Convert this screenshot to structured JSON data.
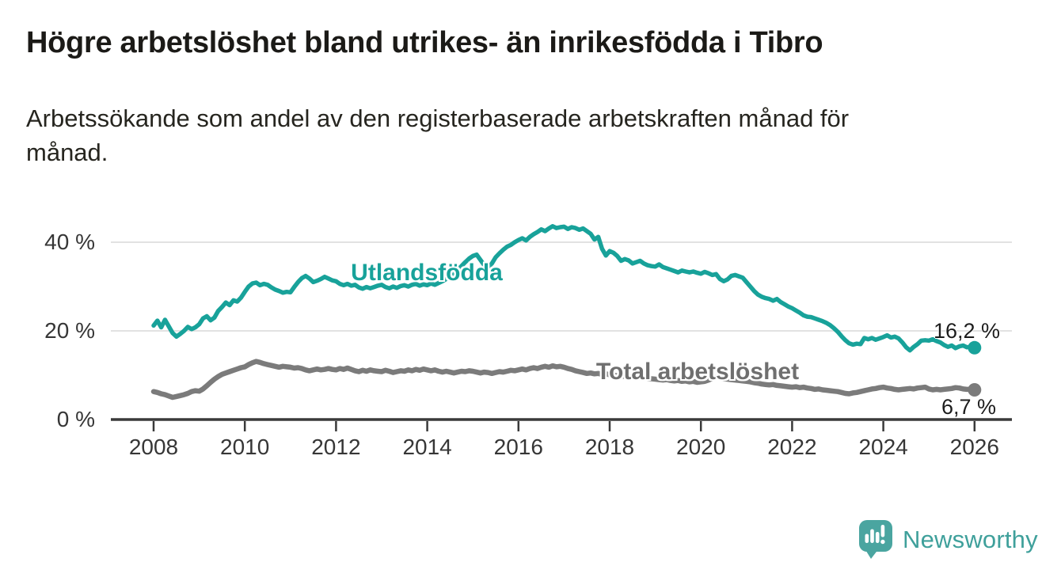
{
  "page": {
    "title": "Högre arbetslöshet bland utrikes- än inrikesfödda i Tibro",
    "subtitle_lines": [
      "Arbetssökande som andel av den registerbaserade arbetskraften månad för",
      "månad."
    ]
  },
  "chart_data": {
    "type": "line",
    "title": "Högre arbetslöshet bland utrikes- än inrikesfödda i Tibro",
    "xlabel": "",
    "ylabel": "Arbetssökande som andel av den registerbaserade arbetskraften",
    "x_unit": "months",
    "x_start_year": 2008,
    "x_step_months": 1,
    "x_ticks": [
      2008,
      2010,
      2012,
      2014,
      2016,
      2018,
      2020,
      2022,
      2024,
      2026
    ],
    "y_ticks": [
      {
        "value": 0,
        "label": "0 %"
      },
      {
        "value": 20,
        "label": "20 %"
      },
      {
        "value": 40,
        "label": "40 %"
      }
    ],
    "ylim": [
      0,
      46
    ],
    "xlim": [
      2007.1,
      2026.8
    ],
    "grid": "horizontal-only",
    "legend": "inline-series-labels",
    "colors": {
      "grid": "#d9d9d9",
      "axis": "#3a3a3a",
      "tick_text": "#363636",
      "annotation_text": "#1c1c1c"
    },
    "series": [
      {
        "name": "Utlandsfödda",
        "color": "#18A29A",
        "end_value": 16.2,
        "end_label": "16,2 %",
        "values": [
          21.2,
          22.3,
          20.8,
          22.5,
          21.0,
          19.5,
          18.7,
          19.3,
          20.0,
          20.9,
          20.4,
          20.8,
          21.5,
          22.8,
          23.3,
          22.4,
          23.0,
          24.5,
          25.4,
          26.4,
          25.8,
          26.9,
          26.6,
          27.5,
          28.8,
          30.0,
          30.7,
          30.9,
          30.3,
          30.6,
          30.4,
          29.8,
          29.3,
          29.0,
          28.6,
          28.8,
          28.7,
          29.9,
          31.0,
          31.9,
          32.4,
          31.8,
          31.0,
          31.3,
          31.7,
          32.2,
          31.8,
          31.4,
          31.2,
          30.6,
          30.3,
          30.6,
          30.2,
          30.4,
          29.8,
          29.5,
          29.9,
          29.6,
          29.9,
          30.2,
          30.4,
          29.9,
          29.6,
          30.0,
          29.7,
          30.1,
          30.3,
          30.0,
          30.4,
          30.6,
          30.2,
          30.5,
          30.3,
          30.7,
          30.4,
          30.8,
          31.2,
          31.7,
          32.3,
          33.0,
          33.8,
          34.6,
          35.5,
          36.3,
          36.9,
          37.2,
          36.0,
          34.8,
          34.3,
          35.2,
          36.6,
          37.5,
          38.3,
          39.0,
          39.4,
          40.0,
          40.5,
          40.9,
          40.4,
          41.2,
          41.8,
          42.3,
          42.9,
          42.5,
          43.1,
          43.6,
          43.2,
          43.4,
          43.5,
          43.0,
          43.4,
          43.2,
          42.8,
          43.1,
          42.5,
          41.9,
          40.6,
          41.2,
          38.5,
          37.0,
          38.0,
          37.6,
          36.9,
          35.8,
          36.2,
          35.9,
          35.2,
          35.5,
          35.8,
          35.2,
          34.8,
          34.6,
          34.5,
          35.0,
          34.4,
          34.1,
          33.8,
          33.5,
          33.2,
          33.6,
          33.4,
          33.2,
          33.4,
          33.1,
          32.9,
          33.3,
          33.0,
          32.6,
          32.8,
          31.7,
          31.2,
          31.6,
          32.4,
          32.6,
          32.3,
          32.0,
          31.0,
          30.0,
          29.0,
          28.2,
          27.7,
          27.4,
          27.2,
          26.8,
          27.2,
          26.5,
          26.0,
          25.5,
          25.1,
          24.6,
          24.1,
          23.5,
          23.2,
          23.1,
          22.8,
          22.5,
          22.2,
          21.8,
          21.3,
          20.6,
          19.8,
          18.8,
          17.9,
          17.2,
          16.9,
          17.1,
          17.0,
          18.4,
          18.1,
          18.4,
          18.0,
          18.3,
          18.6,
          19.0,
          18.5,
          18.7,
          18.3,
          17.4,
          16.3,
          15.6,
          16.4,
          17.0,
          17.8,
          17.9,
          17.8,
          18.1,
          17.7,
          17.4,
          16.8,
          16.4,
          16.7,
          16.1,
          16.5,
          16.7,
          16.3,
          16.4,
          16.2
        ]
      },
      {
        "name": "Total arbetslöshet",
        "color": "#7b7b7b",
        "end_value": 6.7,
        "end_label": "6,7 %",
        "values": [
          6.3,
          6.1,
          5.8,
          5.6,
          5.3,
          5.0,
          5.2,
          5.4,
          5.6,
          5.9,
          6.3,
          6.5,
          6.4,
          6.9,
          7.6,
          8.4,
          9.1,
          9.7,
          10.2,
          10.5,
          10.8,
          11.1,
          11.4,
          11.7,
          11.9,
          12.4,
          12.8,
          13.1,
          12.9,
          12.6,
          12.4,
          12.2,
          12.0,
          11.8,
          12.0,
          11.9,
          11.8,
          11.6,
          11.7,
          11.5,
          11.2,
          11.0,
          11.2,
          11.4,
          11.2,
          11.3,
          11.5,
          11.3,
          11.2,
          11.5,
          11.3,
          11.6,
          11.3,
          11.0,
          10.8,
          11.1,
          10.9,
          11.2,
          11.0,
          10.9,
          10.8,
          11.1,
          10.9,
          10.6,
          10.8,
          11.0,
          10.9,
          11.2,
          11.0,
          11.3,
          11.1,
          11.4,
          11.2,
          11.0,
          11.2,
          10.9,
          10.7,
          10.9,
          10.7,
          10.5,
          10.7,
          10.9,
          10.8,
          11.0,
          10.9,
          10.7,
          10.5,
          10.7,
          10.6,
          10.4,
          10.6,
          10.8,
          10.7,
          10.9,
          11.1,
          11.0,
          11.2,
          11.4,
          11.2,
          11.5,
          11.7,
          11.5,
          11.8,
          12.0,
          11.8,
          12.1,
          11.9,
          12.0,
          11.8,
          11.5,
          11.3,
          11.0,
          10.8,
          10.6,
          10.4,
          10.5,
          10.3,
          10.4,
          10.2,
          10.3,
          10.1,
          10.0,
          9.9,
          9.8,
          9.7,
          9.6,
          9.5,
          9.6,
          9.4,
          9.5,
          9.3,
          9.2,
          9.1,
          9.0,
          8.9,
          9.0,
          8.8,
          8.7,
          8.8,
          8.6,
          8.7,
          8.5,
          8.6,
          8.4,
          8.5,
          8.6,
          8.9,
          9.3,
          9.5,
          9.4,
          9.2,
          9.1,
          9.0,
          8.9,
          8.8,
          8.7,
          8.6,
          8.5,
          8.3,
          8.2,
          8.0,
          7.9,
          7.8,
          7.9,
          7.7,
          7.6,
          7.5,
          7.4,
          7.3,
          7.4,
          7.2,
          7.3,
          7.1,
          7.0,
          6.8,
          6.9,
          6.7,
          6.6,
          6.5,
          6.4,
          6.3,
          6.1,
          5.9,
          5.8,
          6.0,
          6.1,
          6.3,
          6.5,
          6.7,
          6.9,
          7.0,
          7.2,
          7.3,
          7.1,
          7.0,
          6.8,
          6.7,
          6.8,
          6.9,
          7.0,
          6.9,
          7.1,
          7.2,
          7.3,
          6.9,
          6.7,
          6.8,
          6.7,
          6.8,
          6.9,
          7.0,
          7.2,
          7.1,
          6.9,
          6.8,
          6.8,
          6.7
        ]
      }
    ]
  },
  "branding": {
    "logo_text": "Newsworthy",
    "logo_color": "#3FA09B",
    "logo_icon": "newsworthy-speech-bubble-bar-chart-icon"
  }
}
